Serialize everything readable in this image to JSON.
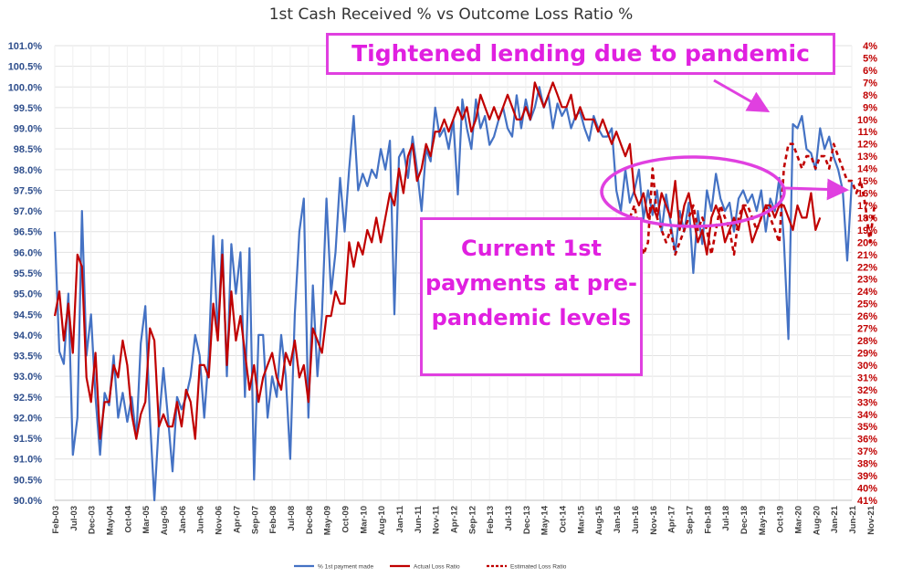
{
  "chart_data": {
    "type": "line",
    "title": "1st Cash Received % vs Outcome Loss Ratio %",
    "y_left": {
      "min": 90.0,
      "max": 101.0,
      "ticks": [
        "101.0%",
        "100.5%",
        "100.0%",
        "99.5%",
        "99.0%",
        "98.5%",
        "98.0%",
        "97.5%",
        "97.0%",
        "96.5%",
        "96.0%",
        "95.5%",
        "95.0%",
        "94.5%",
        "94.0%",
        "93.5%",
        "93.0%",
        "92.5%",
        "92.0%",
        "91.5%",
        "91.0%",
        "90.5%",
        "90.0%"
      ]
    },
    "y_right": {
      "min": 4,
      "max": 41,
      "inverted": true,
      "ticks": [
        "4%",
        "5%",
        "6%",
        "7%",
        "8%",
        "9%",
        "10%",
        "11%",
        "12%",
        "13%",
        "14%",
        "15%",
        "16%",
        "17%",
        "18%",
        "19%",
        "20%",
        "21%",
        "22%",
        "23%",
        "24%",
        "25%",
        "26%",
        "27%",
        "28%",
        "29%",
        "30%",
        "31%",
        "32%",
        "33%",
        "34%",
        "35%",
        "36%",
        "37%",
        "38%",
        "39%",
        "40%",
        "41%"
      ]
    },
    "x_ticks": [
      "Feb-03",
      "Jul-03",
      "Dec-03",
      "May-04",
      "Oct-04",
      "Mar-05",
      "Aug-05",
      "Jan-06",
      "Jun-06",
      "Nov-06",
      "Apr-07",
      "Sep-07",
      "Feb-08",
      "Jul-08",
      "Dec-08",
      "May-09",
      "Oct-09",
      "Mar-10",
      "Aug-10",
      "Jan-11",
      "Jun-11",
      "Nov-11",
      "Apr-12",
      "Sep-12",
      "Feb-13",
      "Jul-13",
      "Dec-13",
      "May-14",
      "Oct-14",
      "Mar-15",
      "Aug-15",
      "Jan-16",
      "Jun-16",
      "Nov-16",
      "Apr-17",
      "Sep-17",
      "Feb-18",
      "Jul-18",
      "Dec-18",
      "May-19",
      "Oct-19",
      "Mar-20",
      "Aug-20",
      "Jan-21",
      "Jun-21",
      "Nov-21"
    ],
    "series": [
      {
        "name": "% 1st payment made",
        "color": "#4472c4",
        "axis": "left",
        "style": "solid",
        "values": [
          96.5,
          93.6,
          93.3,
          95.0,
          91.1,
          92.0,
          97.0,
          93.5,
          94.5,
          92.5,
          91.1,
          92.6,
          92.3,
          93.5,
          92.0,
          92.6,
          91.9,
          92.5,
          91.5,
          93.8,
          94.7,
          92.0,
          90.0,
          91.9,
          93.2,
          92.0,
          90.7,
          92.5,
          92.2,
          92.5,
          93.0,
          94.0,
          93.5,
          92.0,
          93.5,
          96.4,
          94.0,
          96.3,
          93.0,
          96.2,
          95.0,
          96.0,
          92.5,
          96.1,
          90.5,
          94.0,
          94.0,
          92.0,
          93.0,
          92.5,
          94.0,
          93.0,
          91.0,
          94.5,
          96.5,
          97.3,
          92.0,
          95.2,
          93.0,
          94.5,
          97.3,
          95.0,
          96.0,
          97.8,
          96.5,
          98.0,
          99.3,
          97.5,
          97.9,
          97.6,
          98.0,
          97.8,
          98.5,
          98.0,
          98.7,
          94.5,
          98.3,
          98.5,
          97.8,
          98.8,
          98.0,
          97.0,
          98.5,
          98.2,
          99.5,
          98.8,
          99.0,
          98.5,
          99.2,
          97.4,
          99.7,
          99.0,
          98.5,
          99.7,
          99.0,
          99.3,
          98.6,
          98.8,
          99.2,
          99.5,
          99.0,
          98.8,
          99.8,
          99.0,
          99.7,
          99.2,
          99.5,
          100.0,
          99.5,
          99.8,
          99.0,
          99.6,
          99.3,
          99.5,
          99.0,
          99.3,
          99.4,
          99.0,
          98.7,
          99.3,
          99.0,
          98.8,
          98.8,
          99.0,
          97.5,
          97.0,
          98.0,
          97.2,
          97.5,
          98.0,
          96.8,
          97.5,
          96.9,
          97.5,
          96.5,
          97.4,
          96.7,
          96.0,
          97.0,
          96.5,
          97.2,
          95.5,
          97.0,
          96.2,
          97.5,
          97.0,
          97.9,
          97.3,
          97.0,
          97.2,
          96.5,
          97.3,
          97.5,
          97.2,
          97.4,
          97.0,
          97.5,
          96.5,
          97.3,
          97.0,
          97.8,
          96.3,
          93.9,
          99.1,
          99.0,
          99.3,
          98.5,
          98.4,
          98.0,
          99.0,
          98.5,
          98.8,
          98.3,
          98.0,
          97.5,
          95.8,
          97.7
        ],
        "start_index": 0
      },
      {
        "name": "Actual Loss Ratio",
        "color": "#c00000",
        "axis": "right",
        "style": "solid",
        "values": [
          26,
          24,
          28,
          25,
          29,
          21,
          22,
          31,
          33,
          29,
          36,
          33,
          33,
          30,
          31,
          28,
          30,
          34,
          36,
          34,
          33,
          27,
          28,
          35,
          34,
          35,
          35,
          33,
          35,
          32,
          33,
          36,
          30,
          30,
          31,
          25,
          28,
          21,
          30,
          24,
          28,
          26,
          29,
          32,
          30,
          33,
          31,
          30,
          29,
          31,
          32,
          29,
          30,
          28,
          31,
          30,
          33,
          27,
          28,
          29,
          26,
          26,
          24,
          25,
          25,
          20,
          22,
          20,
          21,
          19,
          20,
          18,
          20,
          18,
          16,
          17,
          14,
          16,
          13,
          12,
          15,
          14,
          12,
          13,
          11,
          11,
          10,
          11,
          10,
          9,
          10,
          9,
          11,
          10,
          8,
          9,
          10,
          9,
          10,
          9,
          8,
          9,
          10,
          10,
          9,
          10,
          7,
          8,
          9,
          8,
          7,
          8,
          9,
          9,
          8,
          10,
          9,
          10,
          10,
          10,
          11,
          10,
          11,
          12,
          11,
          12,
          13,
          12,
          16,
          17,
          16,
          18,
          17,
          18,
          16,
          17,
          18,
          15,
          19,
          17,
          16,
          18,
          20,
          19,
          21,
          18,
          17,
          18,
          20,
          19,
          18,
          19,
          17,
          18,
          20,
          19,
          18,
          17,
          17,
          18,
          17,
          17,
          18,
          19,
          17,
          18,
          18,
          16,
          19,
          18
        ],
        "start_index": 0
      },
      {
        "name": "Estimated Loss Ratio",
        "color": "#c00000",
        "axis": "right",
        "style": "dashed",
        "values": [
          18,
          17,
          19,
          21,
          20,
          14,
          18,
          19,
          20,
          19,
          21,
          20,
          19,
          18,
          17,
          19,
          18,
          19,
          21,
          19,
          17,
          18,
          19,
          21,
          18,
          17,
          17,
          18,
          19,
          18,
          17,
          18,
          19,
          20,
          14,
          12,
          12,
          13,
          14,
          13,
          13,
          14,
          13,
          13,
          14,
          12,
          13,
          14,
          15,
          15,
          16,
          15,
          17,
          20,
          17
        ],
        "start_index": 127
      }
    ],
    "legend": {
      "position": "bottom",
      "entries": [
        "% 1st payment made",
        "Actual Loss Ratio",
        "Estimated Loss Ratio"
      ]
    },
    "annotations": [
      "Tightened lending due to pandemic",
      "Current 1st payments at pre-pandemic levels"
    ],
    "annotation_color": "#e040e0",
    "grid": true
  }
}
